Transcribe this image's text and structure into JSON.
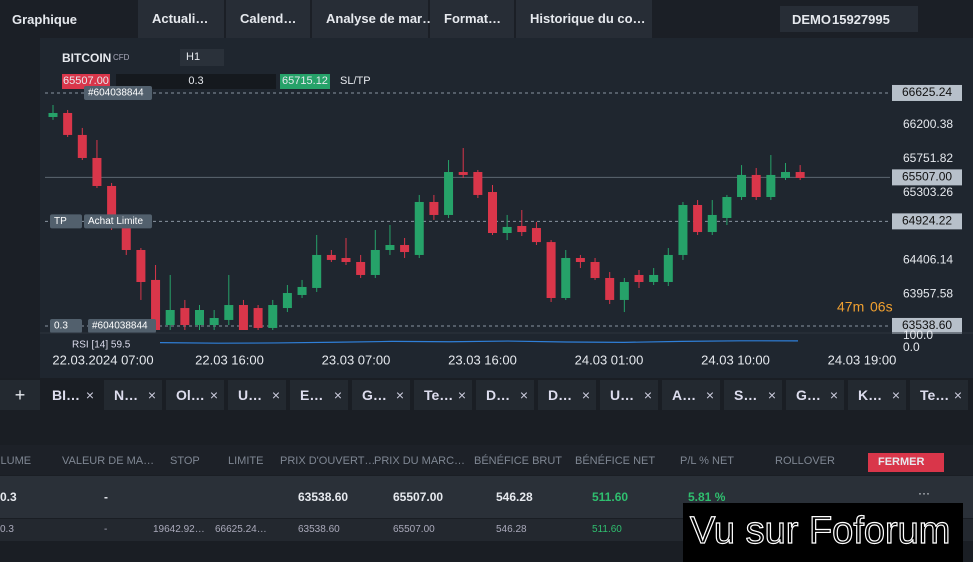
{
  "header": {
    "menu": "Graphique",
    "tabs": [
      "Actuali…",
      "Calend…",
      "Analyse de mar…",
      "Format…",
      "Historique du co…"
    ],
    "account": "DEMO",
    "account_number": "15927995"
  },
  "toolbar": {
    "symbol": "BITCOIN",
    "symbol_type": "CFD",
    "timeframe": "H1",
    "sell_price": "65507.00",
    "volume": "0.3",
    "buy_price": "65715.12",
    "sltp": "SL/TP"
  },
  "chart": {
    "type": "candlestick",
    "ylim": [
      63485,
      67327
    ],
    "yticks": [
      66200.38,
      65751.82,
      65303.26,
      64406.14,
      63957.58
    ],
    "up_color": "#26a269",
    "down_color": "#d9364a",
    "price_levels": [
      {
        "value": 66625.24,
        "label": "66625.24",
        "dashed": true
      },
      {
        "value": 65507.0,
        "label": "65507.00",
        "dashed": false
      },
      {
        "value": 64924.22,
        "label": "64924.22",
        "dashed": true
      },
      {
        "value": 63538.6,
        "label": "63538.60",
        "dashed": true
      }
    ],
    "order_tags": {
      "top_id": "#604038844",
      "tp": "TP",
      "tp_label": "Achat Limite",
      "bottom_volume": "0.3",
      "bottom_id": "#604038844"
    },
    "timer_minutes": "47m",
    "timer_seconds": "06s",
    "xtick_labels": [
      "22.03.2024 07:00",
      "22.03 16:00",
      "23.03 07:00",
      "23.03 16:00",
      "24.03 01:00",
      "24.03 10:00",
      "24.03 19:00"
    ],
    "candles": [
      {
        "open": 66307,
        "close": 66360,
        "high": 66466,
        "low": 66268
      },
      {
        "open": 66360,
        "close": 66069,
        "high": 66400,
        "low": 66042
      },
      {
        "open": 66069,
        "close": 65764,
        "high": 66162,
        "low": 65737
      },
      {
        "open": 65764,
        "close": 65393,
        "high": 66002,
        "low": 65366
      },
      {
        "open": 65393,
        "close": 64969,
        "high": 65433,
        "low": 64810
      },
      {
        "open": 64969,
        "close": 64545,
        "high": 65009,
        "low": 64479
      },
      {
        "open": 64545,
        "close": 64121,
        "high": 64571,
        "low": 63883
      },
      {
        "open": 64148,
        "close": 63485,
        "high": 64346,
        "low": 63419
      },
      {
        "open": 63551,
        "close": 63750,
        "high": 64214,
        "low": 63485
      },
      {
        "open": 63776,
        "close": 63551,
        "high": 63883,
        "low": 63485
      },
      {
        "open": 63551,
        "close": 63750,
        "high": 63816,
        "low": 63485
      },
      {
        "open": 63551,
        "close": 63644,
        "high": 63750,
        "low": 63485
      },
      {
        "open": 63618,
        "close": 63816,
        "high": 64214,
        "low": 63551
      },
      {
        "open": 63816,
        "close": 63485,
        "high": 63883,
        "low": 63419
      },
      {
        "open": 63776,
        "close": 63512,
        "high": 63816,
        "low": 63485
      },
      {
        "open": 63512,
        "close": 63816,
        "high": 63883,
        "low": 63485
      },
      {
        "open": 63776,
        "close": 63975,
        "high": 64081,
        "low": 63723
      },
      {
        "open": 63949,
        "close": 64055,
        "high": 64148,
        "low": 63909
      },
      {
        "open": 64042,
        "close": 64479,
        "high": 64744,
        "low": 63989
      },
      {
        "open": 64479,
        "close": 64413,
        "high": 64545,
        "low": 64386
      },
      {
        "open": 64439,
        "close": 64386,
        "high": 64704,
        "low": 64346
      },
      {
        "open": 64386,
        "close": 64214,
        "high": 64479,
        "low": 64174
      },
      {
        "open": 64214,
        "close": 64545,
        "high": 64810,
        "low": 64174
      },
      {
        "open": 64545,
        "close": 64611,
        "high": 64876,
        "low": 64479
      },
      {
        "open": 64611,
        "close": 64518,
        "high": 64704,
        "low": 64439
      },
      {
        "open": 64479,
        "close": 65181,
        "high": 65274,
        "low": 64439
      },
      {
        "open": 65181,
        "close": 65009,
        "high": 65274,
        "low": 64943
      },
      {
        "open": 65009,
        "close": 65578,
        "high": 65737,
        "low": 64969
      },
      {
        "open": 65578,
        "close": 65539,
        "high": 65896,
        "low": 65499
      },
      {
        "open": 65578,
        "close": 65274,
        "high": 65605,
        "low": 65234
      },
      {
        "open": 65313,
        "close": 64770,
        "high": 65406,
        "low": 64744
      },
      {
        "open": 64770,
        "close": 64850,
        "high": 65009,
        "low": 64677
      },
      {
        "open": 64863,
        "close": 64783,
        "high": 65075,
        "low": 64730
      },
      {
        "open": 64836,
        "close": 64650,
        "high": 64916,
        "low": 64611
      },
      {
        "open": 64650,
        "close": 63909,
        "high": 64677,
        "low": 63856
      },
      {
        "open": 63909,
        "close": 64439,
        "high": 64545,
        "low": 63883
      },
      {
        "open": 64439,
        "close": 64386,
        "high": 64479,
        "low": 64306
      },
      {
        "open": 64386,
        "close": 64174,
        "high": 64439,
        "low": 64148
      },
      {
        "open": 64174,
        "close": 63883,
        "high": 64253,
        "low": 63829
      },
      {
        "open": 63883,
        "close": 64121,
        "high": 64174,
        "low": 63723
      },
      {
        "open": 64214,
        "close": 64121,
        "high": 64280,
        "low": 64042
      },
      {
        "open": 64121,
        "close": 64214,
        "high": 64306,
        "low": 64081
      },
      {
        "open": 64121,
        "close": 64479,
        "high": 64571,
        "low": 64068
      },
      {
        "open": 64479,
        "close": 65141,
        "high": 65181,
        "low": 64413
      },
      {
        "open": 65141,
        "close": 64783,
        "high": 65207,
        "low": 64744
      },
      {
        "open": 64783,
        "close": 65009,
        "high": 65207,
        "low": 64744
      },
      {
        "open": 64969,
        "close": 65247,
        "high": 65274,
        "low": 64876
      },
      {
        "open": 65247,
        "close": 65539,
        "high": 65670,
        "low": 65207
      },
      {
        "open": 65539,
        "close": 65247,
        "high": 65631,
        "low": 65207
      },
      {
        "open": 65247,
        "close": 65539,
        "high": 65803,
        "low": 65207
      },
      {
        "open": 65499,
        "close": 65578,
        "high": 65697,
        "low": 65472
      },
      {
        "open": 65578,
        "close": 65499,
        "high": 65670,
        "low": 65472
      }
    ],
    "rsi": {
      "label": "RSI [14] 59.5",
      "color": "#2f7fd8",
      "ylim": [
        0,
        100
      ],
      "yticks": [
        {
          "value": 100,
          "label": "100.0"
        },
        {
          "value": 0,
          "label": "0.0"
        }
      ],
      "values": [
        45,
        40,
        42,
        48,
        55,
        52,
        58,
        50,
        47,
        55,
        60,
        59.5
      ]
    }
  },
  "instrument_tabs": [
    "BI…",
    "N…",
    "Ol…",
    "U…",
    "E…",
    "G…",
    "Te…",
    "D…",
    "D…",
    "U…",
    "A…",
    "S…",
    "G…",
    "K…",
    "Te…"
  ],
  "table": {
    "headers": [
      "OLUME",
      "VALEUR DE MA…",
      "STOP",
      "LIMITE",
      "PRIX D'OUVERT…",
      "PRIX DU MARC…",
      "BÉNÉFICE BRUT",
      "BÉNÉFICE NET",
      "P/L % NET",
      "ROLLOVER"
    ],
    "close_button": "FERMER",
    "more": "···",
    "rows": [
      [
        "0.3",
        "-",
        null,
        null,
        "63538.60",
        "65507.00",
        "546.28",
        "511.60",
        "5.81 %",
        null
      ],
      [
        "0.3",
        "-",
        "19642.92…",
        "66625.24…",
        "63538.60",
        "65507.00",
        "546.28",
        "511.60",
        null,
        null
      ]
    ]
  },
  "watermark": "Vu sur Foforum"
}
